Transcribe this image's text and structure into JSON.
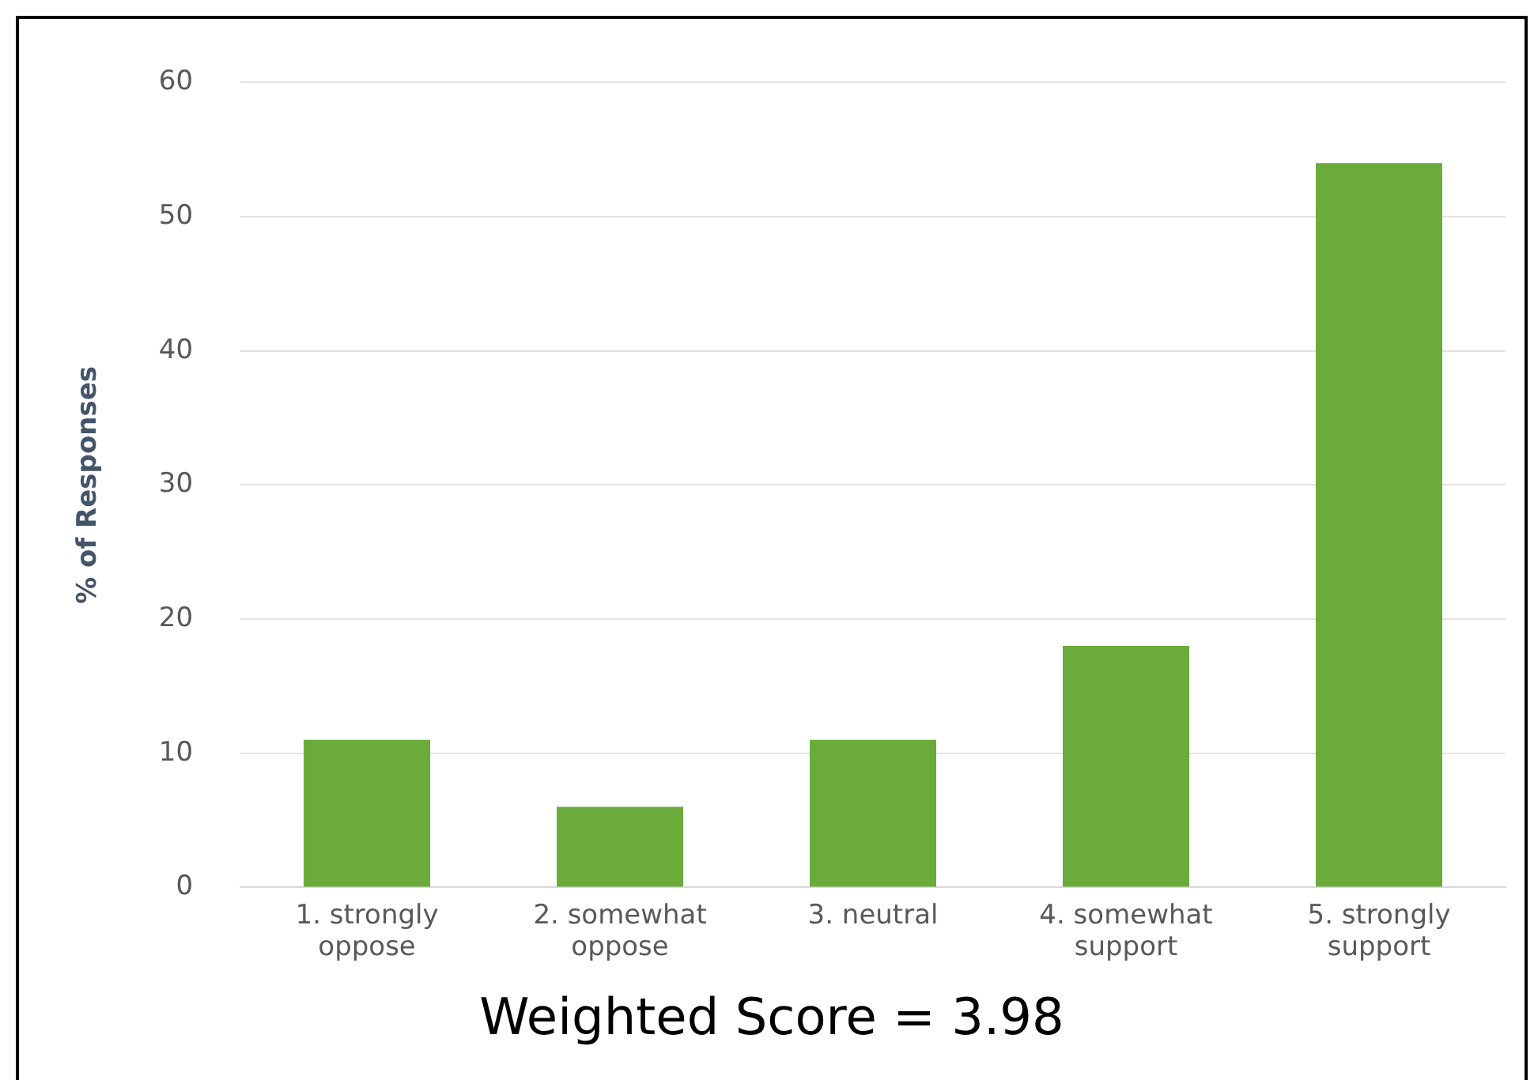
{
  "chart_data": {
    "type": "bar",
    "ylabel": "% of Responses",
    "categories": [
      "1. strongly oppose",
      "2. somewhat oppose",
      "3. neutral",
      "4. somewhat support",
      "5. strongly support"
    ],
    "values": [
      11,
      6,
      11,
      18,
      54
    ],
    "color": "#6aab3c",
    "ylim": [
      0,
      60
    ],
    "yticks": [
      0,
      10,
      20,
      30,
      40,
      50,
      60
    ],
    "grid": "y",
    "legend": false,
    "annotations": [
      "Weighted Score = 3.98"
    ]
  }
}
